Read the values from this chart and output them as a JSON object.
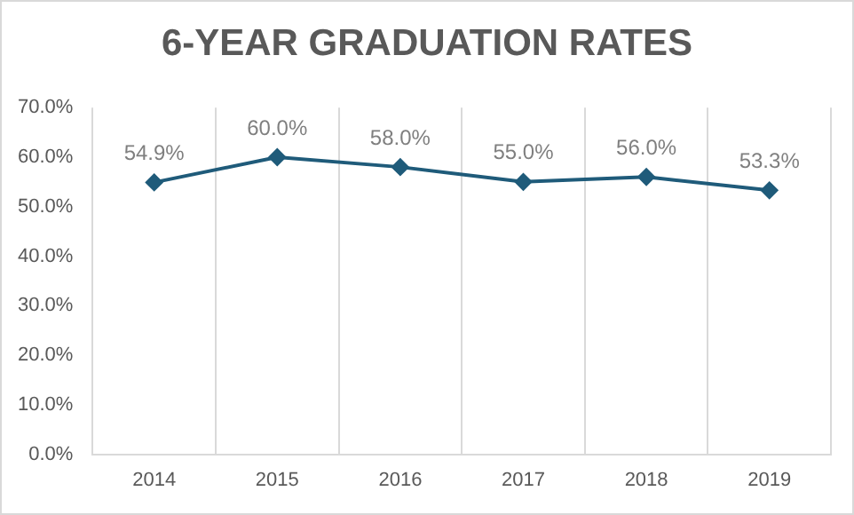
{
  "chart_data": {
    "type": "line",
    "title": "6-YEAR GRADUATION RATES",
    "categories": [
      "2014",
      "2015",
      "2016",
      "2017",
      "2018",
      "2019"
    ],
    "series": [
      {
        "color": "#1f5b7a",
        "values": [
          54.9,
          60.0,
          58.0,
          55.0,
          56.0,
          53.3
        ],
        "value_labels": [
          "54.9%",
          "60.0%",
          "58.0%",
          "55.0%",
          "56.0%",
          "53.3%"
        ]
      }
    ],
    "ylim": [
      0,
      70
    ],
    "yticks": [
      {
        "value": 0,
        "label": "0.0%"
      },
      {
        "value": 10,
        "label": "10.0%"
      },
      {
        "value": 20,
        "label": "20.0%"
      },
      {
        "value": 30,
        "label": "30.0%"
      },
      {
        "value": 40,
        "label": "40.0%"
      },
      {
        "value": 50,
        "label": "50.0%"
      },
      {
        "value": 60,
        "label": "60.0%"
      },
      {
        "value": 70,
        "label": "70.0%"
      }
    ],
    "grid": "x",
    "legend": false,
    "marker": "diamond",
    "line_style": "solid"
  }
}
